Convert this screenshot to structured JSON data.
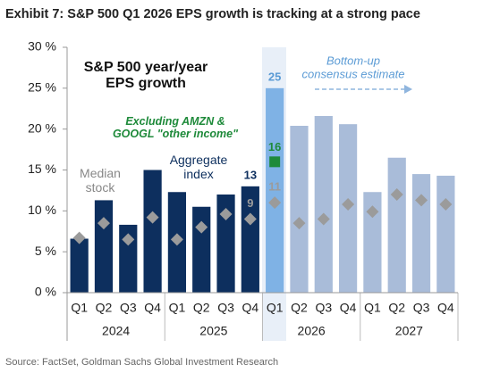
{
  "title": "Exhibit 7: S&P 500 Q1 2026 EPS growth is tracking at a strong pace",
  "source": "Source: FactSet, Goldman Sachs Global Investment Research",
  "chart_data": {
    "type": "bar",
    "headline": "S&P 500  year/year\nEPS growth",
    "estimate_note": "Bottom-up\nconsensus estimate",
    "categories": [
      "Q1",
      "Q2",
      "Q3",
      "Q4",
      "Q1",
      "Q2",
      "Q3",
      "Q4",
      "Q1",
      "Q2",
      "Q3",
      "Q4",
      "Q1",
      "Q2",
      "Q3",
      "Q4"
    ],
    "periods": [
      "2024",
      "2025",
      "2026",
      "2027"
    ],
    "ylim": [
      0,
      30
    ],
    "yticks": [
      {
        "value": 0,
        "label": "0 %"
      },
      {
        "value": 5,
        "label": "5 %"
      },
      {
        "value": 10,
        "label": "10 %"
      },
      {
        "value": 15,
        "label": "15 %"
      },
      {
        "value": 20,
        "label": "20 %"
      },
      {
        "value": 25,
        "label": "25 %"
      },
      {
        "value": 30,
        "label": "30 %"
      }
    ],
    "series": [
      {
        "name": "Aggregate\nindex",
        "marker": "bar",
        "colors": [
          "#0d2f5e",
          "#0d2f5e",
          "#0d2f5e",
          "#0d2f5e",
          "#0d2f5e",
          "#0d2f5e",
          "#0d2f5e",
          "#0d2f5e",
          "#7fb2e5",
          "#a9bcd9",
          "#a9bcd9",
          "#a9bcd9",
          "#a9bcd9",
          "#a9bcd9",
          "#a9bcd9",
          "#a9bcd9"
        ],
        "values": [
          6.6,
          11.3,
          8.3,
          15.0,
          12.3,
          10.5,
          12.0,
          13,
          25,
          20.4,
          21.6,
          20.6,
          12.3,
          16.5,
          14.5,
          14.3
        ],
        "labeled": [
          7,
          8
        ],
        "label_colors": [
          "#0d2f5e",
          "#5b9bd5"
        ]
      },
      {
        "name": "Median\nstock",
        "marker": "diamond",
        "color": "#9b9b9b",
        "values": [
          6.7,
          8.5,
          6.5,
          9.2,
          6.5,
          8.0,
          9.6,
          9,
          11,
          8.5,
          9.0,
          10.8,
          9.9,
          12.0,
          11.3,
          10.8
        ],
        "labeled": [
          7,
          8
        ],
        "label_colors": [
          "#9b9b9b",
          "#9b9b9b"
        ]
      },
      {
        "name": "Excluding AMZN &\nGOOGL \"other income\"",
        "marker": "square",
        "color": "#1e8a3a",
        "values": [
          null,
          null,
          null,
          null,
          null,
          null,
          null,
          null,
          16,
          null,
          null,
          null,
          null,
          null,
          null,
          null
        ],
        "labeled": [
          8
        ],
        "label_colors": [
          "#1e8a3a"
        ]
      }
    ]
  }
}
